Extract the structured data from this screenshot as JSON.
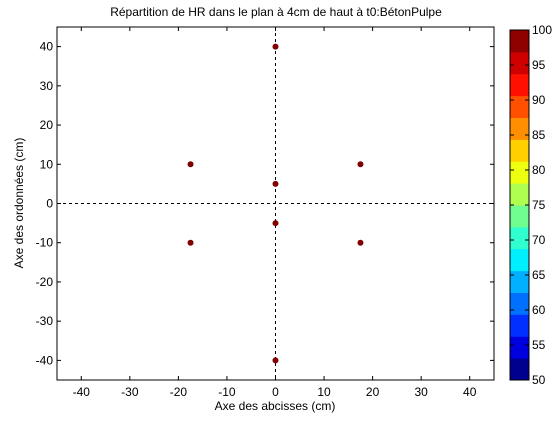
{
  "chart_data": {
    "type": "scatter",
    "title": "Répartition de HR dans le plan à 4cm de haut à t0:BétonPulpe",
    "xlabel": "Axe des abcisses (cm)",
    "ylabel": "Axe des ordonnées (cm)",
    "xlim": [
      -45,
      45
    ],
    "ylim": [
      -45,
      45
    ],
    "xticks": [
      "-40",
      "-30",
      "-20",
      "-10",
      "0",
      "10",
      "20",
      "30",
      "40"
    ],
    "yticks": [
      "40",
      "30",
      "20",
      "10",
      "0",
      "-10",
      "-20",
      "-30",
      "-40"
    ],
    "grid": false,
    "reference_lines": {
      "x": 0,
      "y": 0,
      "style": "dashed"
    },
    "points": [
      {
        "x": 0,
        "y": 40,
        "value": 100
      },
      {
        "x": -17.5,
        "y": 10,
        "value": 100
      },
      {
        "x": 17.5,
        "y": 10,
        "value": 100
      },
      {
        "x": 0,
        "y": 5,
        "value": 100
      },
      {
        "x": 0,
        "y": -5,
        "value": 100
      },
      {
        "x": -17.5,
        "y": -10,
        "value": 100
      },
      {
        "x": 17.5,
        "y": -10,
        "value": 100
      },
      {
        "x": 0,
        "y": -40,
        "value": 100
      }
    ],
    "point_color": "#800000",
    "colorbar": {
      "min": 50,
      "max": 100,
      "ticks": [
        "100",
        "95",
        "90",
        "85",
        "80",
        "75",
        "70",
        "65",
        "60",
        "55",
        "50"
      ],
      "colors": [
        "#00008f",
        "#0000df",
        "#0030ff",
        "#0070ff",
        "#00afff",
        "#00efff",
        "#30ffcf",
        "#70ff8f",
        "#afff50",
        "#efff10",
        "#ffcf00",
        "#ff8f00",
        "#ff5000",
        "#ff1000",
        "#cf0000",
        "#8f0000"
      ]
    }
  }
}
